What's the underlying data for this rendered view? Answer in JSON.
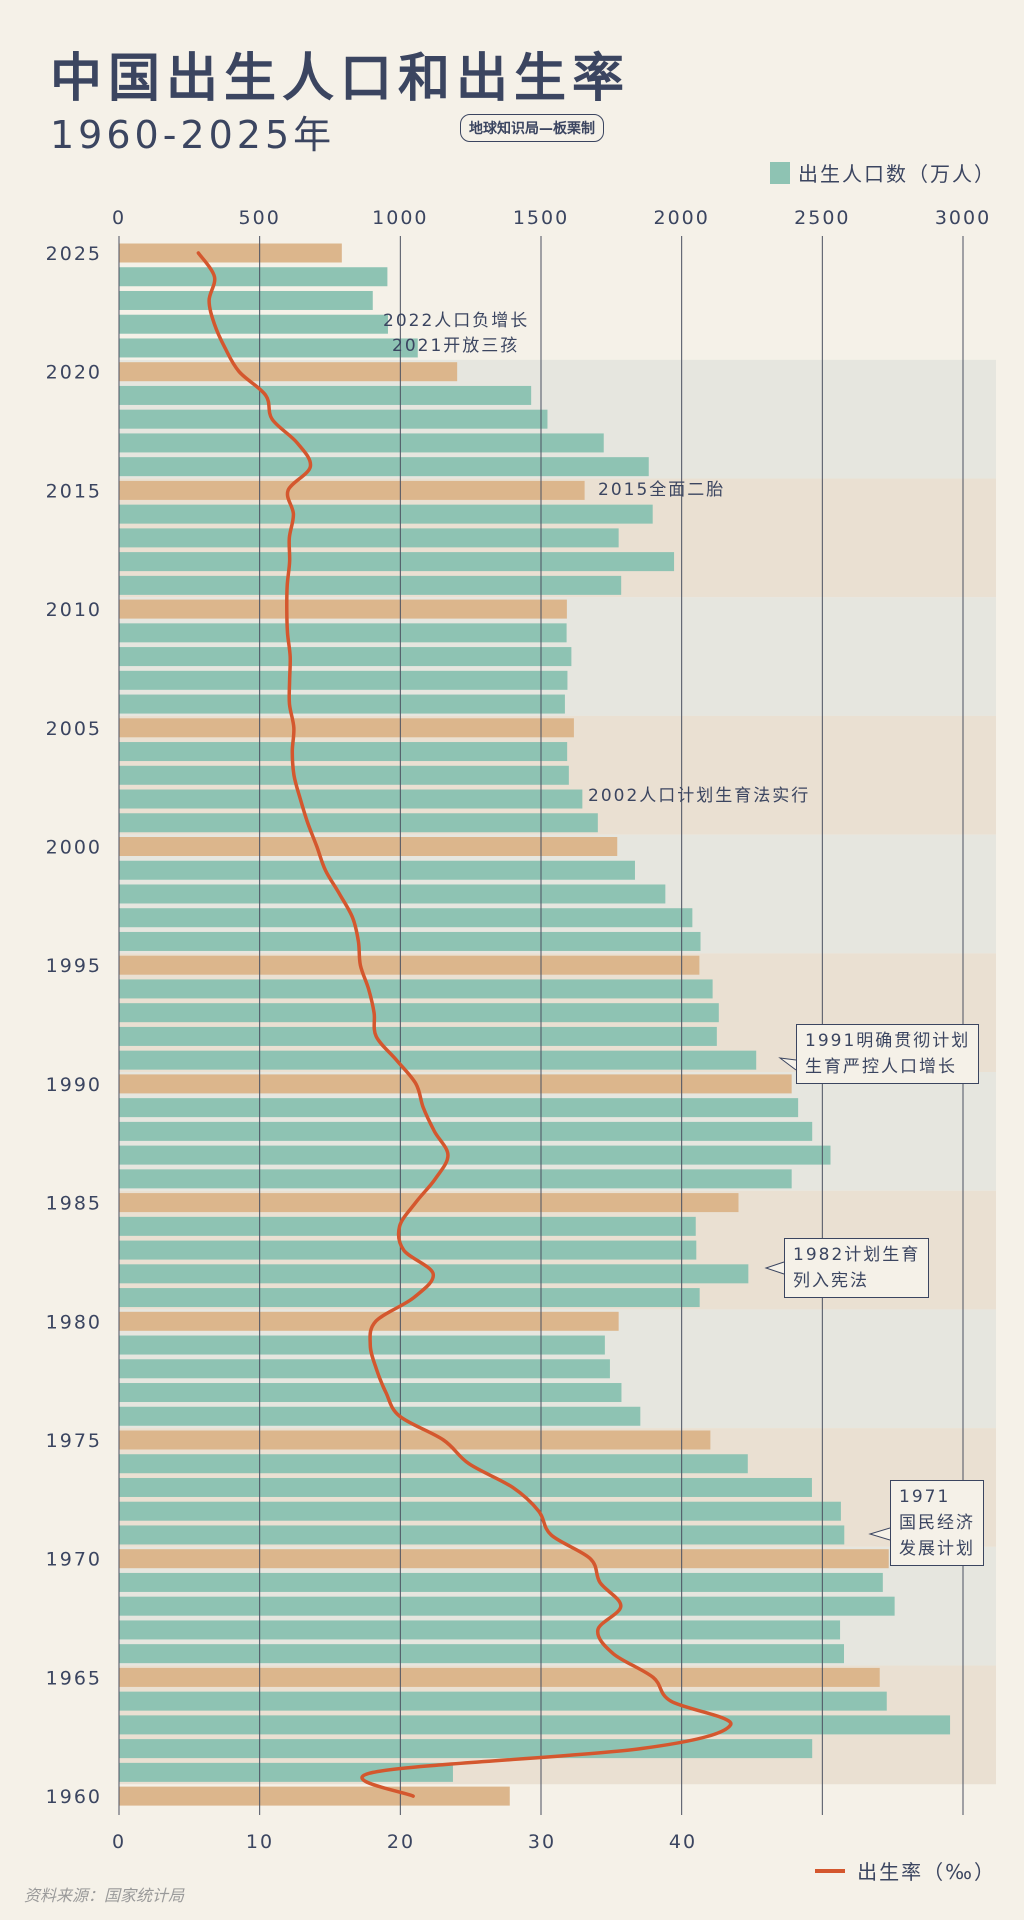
{
  "title": "中国出生人口和出生率",
  "subtitle": "1960-2025年",
  "credit": "地球知识局—板栗制",
  "source": "资料来源：国家统计局",
  "colors": {
    "bar": "#8ec3b3",
    "bar_highlight": "#dcb68c",
    "line": "#d4572e",
    "band_a": "#e6e6df",
    "band_b": "#eae0d2",
    "text": "#3b4560"
  },
  "chart_data": {
    "type": "bar+line",
    "orientation": "horizontal",
    "top_axis": {
      "label": "出生人口数（万人）",
      "ticks": [
        "0",
        "500",
        "1000",
        "1500",
        "2000",
        "2500",
        "3000"
      ],
      "range": [
        0,
        3000
      ]
    },
    "bottom_axis": {
      "label": "出生率（‰）",
      "ticks": [
        "0",
        "10",
        "20",
        "30",
        "40"
      ],
      "range": [
        0,
        60
      ]
    },
    "y_tick_labels": [
      "2025",
      "2020",
      "2015",
      "2010",
      "2005",
      "2000",
      "1995",
      "1990",
      "1985",
      "1980",
      "1975",
      "1970",
      "1965",
      "1960"
    ],
    "years": [
      2025,
      2024,
      2023,
      2022,
      2021,
      2020,
      2019,
      2018,
      2017,
      2016,
      2015,
      2014,
      2013,
      2012,
      2011,
      2010,
      2009,
      2008,
      2007,
      2006,
      2005,
      2004,
      2003,
      2002,
      2001,
      2000,
      1999,
      1998,
      1997,
      1996,
      1995,
      1994,
      1993,
      1992,
      1991,
      1990,
      1989,
      1988,
      1987,
      1986,
      1985,
      1984,
      1983,
      1982,
      1981,
      1980,
      1979,
      1978,
      1977,
      1976,
      1975,
      1974,
      1973,
      1972,
      1971,
      1970,
      1969,
      1968,
      1967,
      1966,
      1965,
      1964,
      1963,
      1962,
      1961,
      1960
    ],
    "series": [
      {
        "name": "出生人口数（万人）",
        "type": "bar",
        "values": [
          792,
          954,
          902,
          956,
          1062,
          1202,
          1465,
          1523,
          1723,
          1883,
          1655,
          1897,
          1776,
          1973,
          1785,
          1592,
          1591,
          1608,
          1594,
          1585,
          1617,
          1593,
          1599,
          1647,
          1702,
          1771,
          1834,
          1942,
          2038,
          2067,
          2063,
          2110,
          2132,
          2125,
          2265,
          2391,
          2414,
          2464,
          2529,
          2391,
          2202,
          2050,
          2052,
          2237,
          2064,
          1776,
          1727,
          1745,
          1786,
          1853,
          2102,
          2235,
          2463,
          2566,
          2578,
          2736,
          2715,
          2757,
          2563,
          2577,
          2704,
          2729,
          2954,
          2464,
          1187,
          1389
        ]
      },
      {
        "name": "出生率（‰）",
        "type": "line",
        "values": [
          5.63,
          6.77,
          6.39,
          6.77,
          7.52,
          8.52,
          10.41,
          10.86,
          12.64,
          13.57,
          11.99,
          12.37,
          12.08,
          12.1,
          11.93,
          11.9,
          11.95,
          12.14,
          12.1,
          12.09,
          12.4,
          12.29,
          12.41,
          12.86,
          13.38,
          14.03,
          14.64,
          15.64,
          16.57,
          16.98,
          17.12,
          17.7,
          18.09,
          18.24,
          19.68,
          21.06,
          21.58,
          22.37,
          23.33,
          22.43,
          21.04,
          19.9,
          20.19,
          22.28,
          20.91,
          18.21,
          17.82,
          18.25,
          18.93,
          19.91,
          23.01,
          24.82,
          27.93,
          29.77,
          30.65,
          33.43,
          34.11,
          35.59,
          33.96,
          35.05,
          37.88,
          39.14,
          43.37,
          37.01,
          18.02,
          20.86
        ]
      }
    ],
    "annotations": [
      {
        "text": "2022人口负增长"
      },
      {
        "text": "2021开放三孩"
      },
      {
        "text": "2015全面二胎"
      },
      {
        "text": "2002人口计划生育法实行"
      },
      {
        "lines": [
          "1991明确贯彻计划",
          "生育严控人口增长"
        ]
      },
      {
        "lines": [
          "1982计划生育",
          "列入宪法"
        ]
      },
      {
        "lines": [
          "1971",
          "国民经济",
          "发展计划"
        ]
      }
    ],
    "grid": true
  }
}
